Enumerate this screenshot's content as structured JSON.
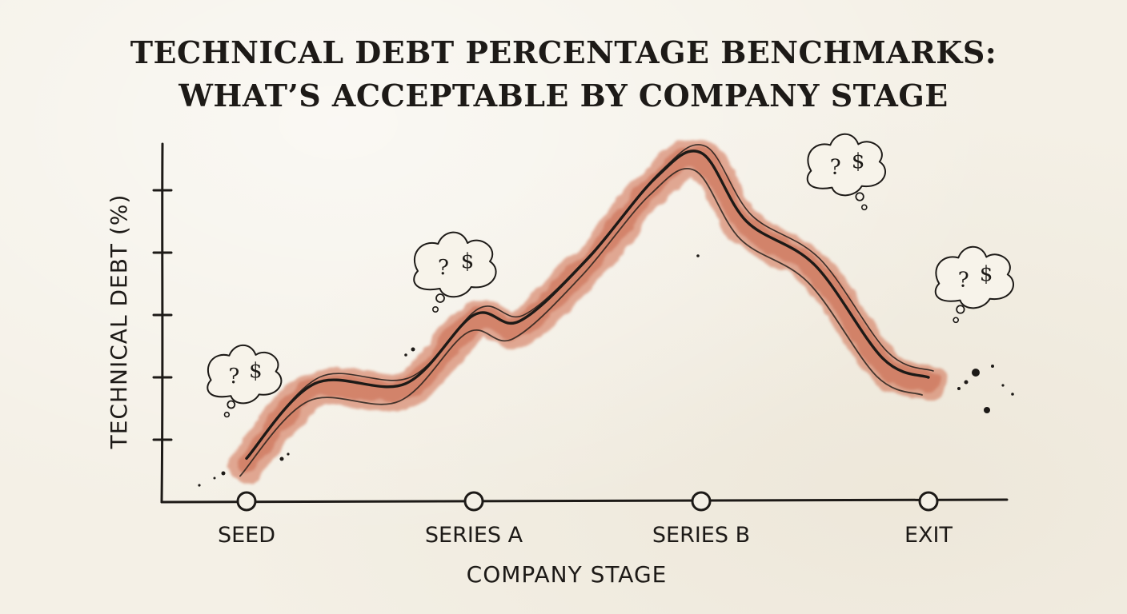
{
  "title_lines": [
    "TECHNICAL DEBT PERCENTAGE BENCHMARKS:",
    "WHAT’S ACCEPTABLE BY COMPANY STAGE"
  ],
  "bubble_glyphs": [
    "?",
    "$"
  ],
  "colors": {
    "ink": "#1d1a17",
    "band": "#cf6a4c",
    "paper": "#f4f0e6"
  },
  "chart_data": {
    "type": "line",
    "title": "TECHNICAL DEBT PERCENTAGE BENCHMARKS: WHAT’S ACCEPTABLE BY COMPANY STAGE",
    "xlabel": "COMPANY STAGE",
    "ylabel": "TECHNICAL DEBT (%)",
    "categories": [
      "SEED",
      "SERIES A",
      "SERIES B",
      "EXIT"
    ],
    "y_ticks_labeled": false,
    "y_tick_count": 5,
    "ylim": [
      0,
      6
    ],
    "grid": false,
    "series": [
      {
        "x": [
          0,
          0.3,
          0.7,
          1.0,
          1.2,
          1.5,
          1.8,
          2.0,
          2.2,
          2.5,
          2.8,
          3.0
        ],
        "values": [
          0.7,
          1.9,
          1.9,
          3.0,
          2.9,
          3.9,
          5.2,
          5.6,
          4.5,
          3.8,
          2.3,
          2.0
        ]
      }
    ]
  }
}
